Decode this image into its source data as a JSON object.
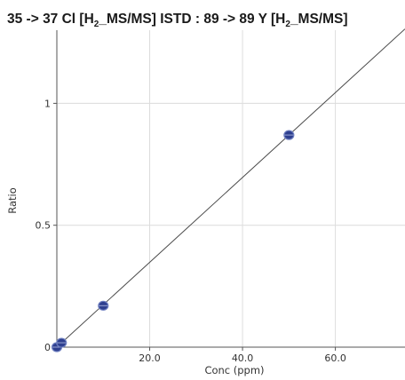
{
  "chart_data": {
    "type": "scatter",
    "title_parts": {
      "p1": "35 -> 37 Cl [H",
      "s1": "2",
      "p2": "_MS/MS] ISTD : 89 -> 89 Y [H",
      "s2": "2",
      "p3": "_MS/MS]"
    },
    "xlabel": "Conc (ppm)",
    "ylabel": "Ratio",
    "xlim": [
      0,
      75
    ],
    "ylim": [
      0,
      1.3
    ],
    "x_ticks": [
      20,
      40,
      60
    ],
    "x_tick_labels": [
      "20.0",
      "40.0",
      "60.0"
    ],
    "y_ticks": [
      0,
      0.5,
      1
    ],
    "y_tick_labels": [
      "0",
      "0.5",
      "1"
    ],
    "grid": true,
    "series": [
      {
        "points": [
          {
            "x": 0,
            "y": 0.0
          },
          {
            "x": 1,
            "y": 0.018
          },
          {
            "x": 10,
            "y": 0.17
          },
          {
            "x": 50,
            "y": 0.87
          }
        ],
        "color": "#2e3f8f"
      }
    ],
    "fit_line": {
      "x": [
        0,
        75
      ],
      "y": [
        0.0,
        1.305
      ],
      "color": "#4a4a4a"
    }
  }
}
